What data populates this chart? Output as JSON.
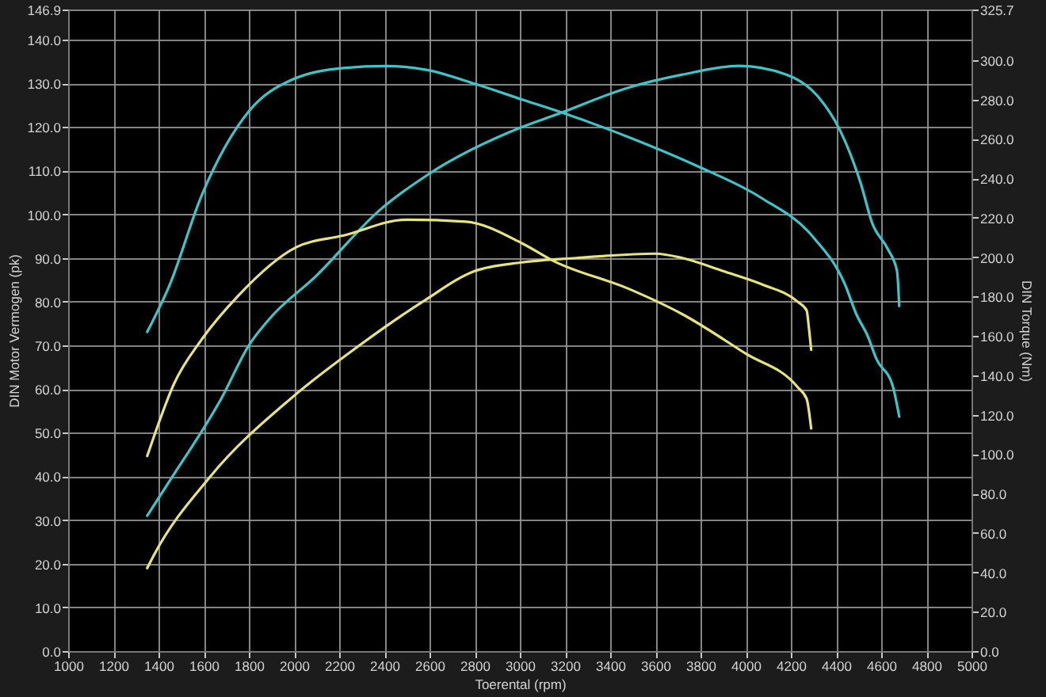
{
  "chart_data": {
    "type": "line",
    "xlabel": "Toerental (rpm)",
    "ylabel": "DIN Motor Vermogen (pk)",
    "y2label": "DIN Torque (Nm)",
    "xlim": [
      1000,
      5000
    ],
    "xticks": [
      1000,
      1200,
      1400,
      1600,
      1800,
      2000,
      2200,
      2400,
      2600,
      2800,
      3000,
      3200,
      3400,
      3600,
      3800,
      4000,
      4200,
      4400,
      4600,
      4800,
      5000
    ],
    "ylim": [
      0,
      146.9
    ],
    "yticks": [
      {
        "value": 0,
        "label": "0.0"
      },
      {
        "value": 10,
        "label": "10.0"
      },
      {
        "value": 20,
        "label": "20.0"
      },
      {
        "value": 30,
        "label": "30.0"
      },
      {
        "value": 40,
        "label": "40.0"
      },
      {
        "value": 50,
        "label": "50.0"
      },
      {
        "value": 60,
        "label": "60.0"
      },
      {
        "value": 70,
        "label": "70.0"
      },
      {
        "value": 80,
        "label": "80.0"
      },
      {
        "value": 90,
        "label": "90.0"
      },
      {
        "value": 100,
        "label": "100.0"
      },
      {
        "value": 110,
        "label": "110.0"
      },
      {
        "value": 120,
        "label": "120.0"
      },
      {
        "value": 130,
        "label": "130.0"
      },
      {
        "value": 140,
        "label": "140.0"
      },
      146.9
    ],
    "y2lim": [
      0,
      325.7
    ],
    "y2ticks": [
      {
        "value": 0,
        "label": "0.0"
      },
      {
        "value": 20,
        "label": "20.0"
      },
      {
        "value": 40,
        "label": "40.0"
      },
      {
        "value": 60,
        "label": "60.0"
      },
      {
        "value": 80,
        "label": "80.0"
      },
      {
        "value": 100,
        "label": "100.0"
      },
      {
        "value": 120,
        "label": "120.0"
      },
      {
        "value": 140,
        "label": "140.0"
      },
      {
        "value": 160,
        "label": "160.0"
      },
      {
        "value": 180,
        "label": "180.0"
      },
      {
        "value": 200,
        "label": "200.0"
      },
      {
        "value": 220,
        "label": "220.0"
      },
      {
        "value": 240,
        "label": "240.0"
      },
      {
        "value": 260,
        "label": "260.0"
      },
      {
        "value": 280,
        "label": "280.0"
      },
      {
        "value": 300,
        "label": "300.0"
      },
      325.7
    ],
    "grid": true,
    "series": [
      {
        "color": "#3cc6c8",
        "x": [
          1350,
          1450,
          1680,
          1800,
          1890,
          2100,
          2380,
          2590,
          3010,
          3170,
          3480,
          3720,
          3970,
          4180,
          4320,
          4420,
          4510,
          4560,
          4630,
          4670,
          4680
        ],
        "values": [
          31,
          39,
          58,
          70,
          76,
          86,
          101,
          109,
          120,
          123,
          129,
          132,
          134,
          132,
          127,
          119,
          107,
          98,
          92,
          87,
          79
        ]
      },
      {
        "color": "#e8e47c",
        "x": [
          1350,
          1380,
          1630,
          1990,
          2290,
          2570,
          2800,
          3010,
          3250,
          3600,
          3720,
          3900,
          4070,
          4230,
          4270,
          4280,
          4290
        ],
        "values": [
          19,
          22,
          40,
          58,
          70,
          80,
          87,
          89,
          90,
          91,
          90,
          87,
          84,
          80,
          78,
          74,
          69
        ]
      },
      {
        "color": "#3cc6c8",
        "axis": "y2",
        "x": [
          1350,
          1450,
          1590,
          1800,
          1990,
          2220,
          2410,
          2590,
          2800,
          3010,
          3170,
          3480,
          3790,
          4070,
          4300,
          4440,
          4490,
          4540,
          4580,
          4650,
          4680
        ],
        "values": [
          162,
          186,
          231,
          274,
          290,
          296,
          297,
          295,
          288,
          280,
          274,
          261,
          246,
          230,
          210,
          186,
          171,
          160,
          148,
          135,
          119
        ]
      },
      {
        "color": "#e8e47c",
        "axis": "y2",
        "x": [
          1350,
          1380,
          1470,
          1590,
          1750,
          2010,
          2220,
          2500,
          2760,
          3010,
          3150,
          3480,
          3720,
          4000,
          4230,
          4270,
          4290
        ],
        "values": [
          99,
          109,
          136,
          158,
          180,
          205,
          211,
          219,
          218,
          207,
          198,
          184,
          171,
          151,
          134,
          128,
          113
        ]
      }
    ]
  }
}
